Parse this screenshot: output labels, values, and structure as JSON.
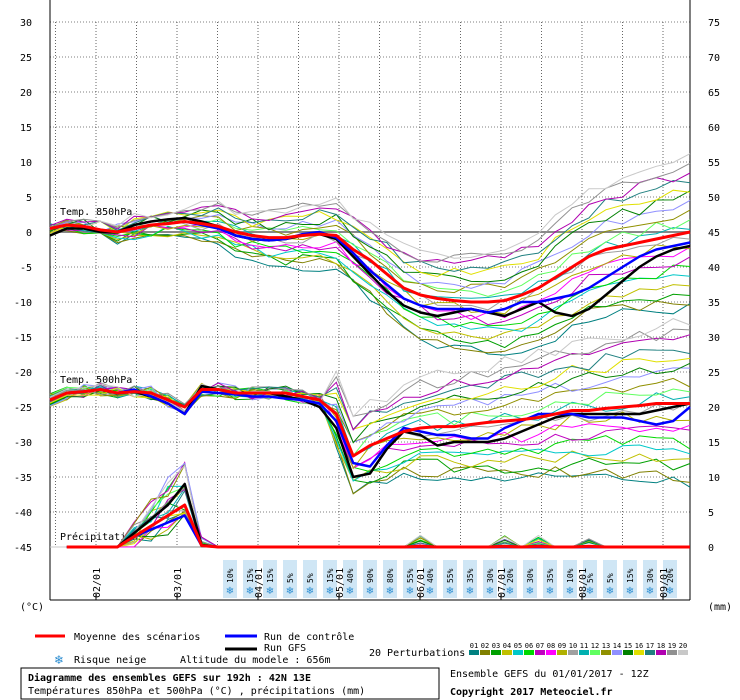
{
  "chart_data": {
    "type": "line",
    "title": "Diagramme des ensembles GEFS sur 192h : 42N 13E",
    "subtitle": "Températures 850hPa et 500hPa (°C) , précipitations (mm)",
    "left_axis": {
      "label": "(°C)",
      "ticks": [
        30,
        25,
        20,
        15,
        10,
        5,
        0,
        -5,
        -10,
        -15,
        -20,
        -25,
        -30,
        -35,
        -40,
        -45
      ]
    },
    "right_axis": {
      "label": "(mm)",
      "ticks": [
        75,
        70,
        65,
        60,
        55,
        50,
        45,
        40,
        35,
        30,
        25,
        20,
        15,
        10,
        5,
        0
      ]
    },
    "x_axis": {
      "ticks": [
        "02/01",
        "03/01",
        "04/01",
        "05/01",
        "06/01",
        "07/01",
        "08/01",
        "09/01"
      ]
    },
    "panel_labels": {
      "t850": "Temp. 850hPa",
      "t500": "Temp. 500hPa",
      "precip": "Précipitations"
    },
    "snow_risk": [
      "10%",
      "15%",
      "15%",
      "5%",
      "5%",
      "15%",
      "40%",
      "90%",
      "80%",
      "55%",
      "40%",
      "55%",
      "35%",
      "30%",
      "20%",
      "30%",
      "35%",
      "10%",
      "5%",
      "5%",
      "15%",
      "30%",
      "20%"
    ],
    "t850": {
      "mean": [
        0.5,
        1,
        0.8,
        0.3,
        0,
        0.5,
        1,
        1.2,
        1.5,
        1.2,
        0.8,
        0,
        -0.5,
        -0.8,
        -0.8,
        -0.5,
        -0.3,
        -0.5,
        -2.5,
        -4,
        -6,
        -8,
        -9,
        -9.5,
        -9.8,
        -10,
        -10,
        -9.8,
        -9,
        -8,
        -6.5,
        -5,
        -3.5,
        -2.5,
        -2,
        -1.5,
        -1,
        -0.5,
        0
      ],
      "control": [
        0.5,
        1,
        0.8,
        0.3,
        0,
        0.5,
        1,
        1.2,
        1.5,
        1,
        0.5,
        -0.5,
        -1,
        -1.2,
        -1,
        -0.3,
        0,
        -0.8,
        -3,
        -5.5,
        -7.5,
        -9.5,
        -10.5,
        -11,
        -11,
        -11,
        -11.5,
        -11,
        -10,
        -10,
        -9.5,
        -9,
        -8,
        -6.5,
        -5,
        -3.5,
        -2.5,
        -2,
        -1.5
      ],
      "gfs": [
        -0.5,
        0.5,
        0.5,
        0,
        0,
        1,
        1.5,
        1.8,
        2,
        1.5,
        0.8,
        -0.5,
        -1,
        -1.2,
        -1,
        -0.5,
        -0.3,
        -1,
        -3.5,
        -6,
        -8.5,
        -10.5,
        -11.5,
        -12,
        -11.5,
        -11,
        -11.5,
        -12,
        -11,
        -10,
        -11.5,
        -12,
        -11,
        -9,
        -7,
        -5,
        -3.5,
        -2.5,
        -2
      ]
    },
    "t500": {
      "mean": [
        -24,
        -23,
        -22.8,
        -22.5,
        -23,
        -22.8,
        -23,
        -24,
        -25,
        -22.5,
        -22.5,
        -23,
        -23,
        -23,
        -23,
        -23.5,
        -24,
        -26,
        -32,
        -30.5,
        -29.5,
        -28.5,
        -28,
        -27.8,
        -27.8,
        -27.5,
        -27.2,
        -27,
        -26.8,
        -26.5,
        -26,
        -25.5,
        -25.5,
        -25.2,
        -25,
        -24.8,
        -24.5,
        -24.5,
        -24.5
      ],
      "control": [
        -24,
        -23,
        -22.8,
        -22.5,
        -23,
        -22.5,
        -23.5,
        -24.5,
        -26,
        -22.8,
        -23,
        -23.2,
        -23.5,
        -23.5,
        -23.8,
        -24,
        -24.5,
        -27,
        -33,
        -33.5,
        -30.5,
        -28,
        -28.5,
        -29,
        -29,
        -29.5,
        -29.5,
        -28,
        -27,
        -26,
        -26,
        -26,
        -26.5,
        -26.5,
        -26.5,
        -27,
        -27.5,
        -27,
        -25
      ],
      "gfs": [
        -24,
        -23,
        -22.8,
        -22.5,
        -23,
        -22.8,
        -23.5,
        -24.5,
        -26,
        -22,
        -22.5,
        -23,
        -23,
        -23,
        -23.5,
        -24,
        -25,
        -28,
        -35,
        -34.5,
        -31,
        -28.5,
        -29,
        -30.5,
        -30,
        -30,
        -30,
        -29.5,
        -28.5,
        -27.5,
        -26.5,
        -26,
        -26,
        -26,
        -26,
        -26,
        -25.5,
        -25,
        -24.5
      ]
    },
    "precip": {
      "mean": [
        0,
        0,
        0,
        0,
        0,
        1.5,
        3,
        4.5,
        6,
        0.2,
        0,
        0,
        0,
        0,
        0,
        0,
        0,
        0,
        0,
        0,
        0,
        0,
        0.1,
        0,
        0,
        0,
        0,
        0.1,
        0,
        0.1,
        0,
        0,
        0.1,
        0,
        0,
        0,
        0,
        0,
        0
      ],
      "control": [
        0,
        0,
        0,
        0,
        0,
        1.5,
        2.5,
        3.5,
        4.5,
        0.2,
        0,
        0,
        0,
        0,
        0,
        0,
        0,
        0,
        0,
        0,
        0,
        0,
        0,
        0,
        0,
        0,
        0,
        0,
        0,
        0,
        0,
        0,
        0,
        0,
        0,
        0,
        0,
        0,
        0
      ],
      "gfs": [
        0,
        0,
        0,
        0,
        0,
        2,
        4,
        6,
        9,
        0.3,
        0,
        0,
        0,
        0,
        0,
        0,
        0,
        0,
        0,
        0,
        0,
        0,
        0,
        0,
        0,
        0,
        0,
        0,
        0,
        0,
        0,
        0,
        0,
        0,
        0,
        0,
        0,
        0,
        0
      ]
    },
    "perturbations": {
      "labels": [
        "01",
        "02",
        "03",
        "04",
        "05",
        "06",
        "07",
        "08",
        "09",
        "10",
        "11",
        "12",
        "13",
        "14",
        "15",
        "16",
        "17",
        "18",
        "19",
        "20"
      ],
      "colors": [
        "#008080",
        "#808000",
        "#00a000",
        "#c0c000",
        "#00c8c8",
        "#00d800",
        "#c000c0",
        "#ff00ff",
        "#b0b000",
        "#a0a0a0",
        "#00b0b0",
        "#60ff60",
        "#909000",
        "#9090ff",
        "#008000",
        "#e0e000",
        "#208080",
        "#b000b0",
        "#909090",
        "#c8c8c8"
      ]
    },
    "legend": {
      "mean": "Moyenne des scénarios",
      "control": "Run de contrôle",
      "gfs": "Run GFS",
      "snow": "Risque neige",
      "altitude": "Altitude du modele : 656m",
      "perturbations": "20 Perturbations",
      "ensemble": "Ensemble GEFS du 01/01/2017 - 12Z",
      "copyright": "Copyright 2017 Meteociel.fr"
    },
    "colors": {
      "mean": "#ff0000",
      "control": "#0000ff",
      "gfs": "#000000",
      "snow_bg": "#cfe6f5",
      "snow": "#2a8cd0"
    }
  }
}
